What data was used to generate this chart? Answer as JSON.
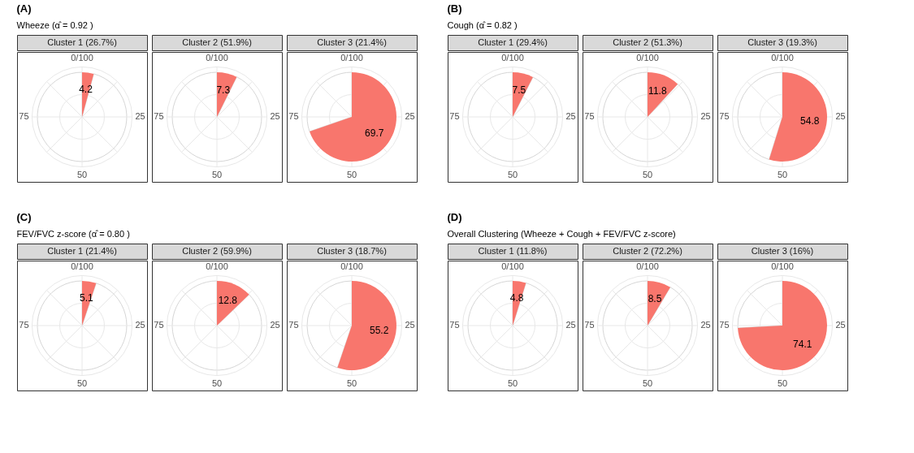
{
  "chart_data": [
    {
      "type": "pie",
      "title": "Cluster 1 (26.7%)",
      "subtitle": "Wheeze (α̂ = 0.92 )",
      "annotations": [
        "(A)",
        "0/100",
        "25",
        "50",
        "75"
      ],
      "categories": [
        null,
        null
      ],
      "values": [
        4.2,
        95.8
      ],
      "colors": [
        "#f8766d",
        "#ffffff"
      ],
      "value_labels": [
        "4.2",
        null
      ],
      "grid": true
    },
    {
      "type": "pie",
      "title": "Cluster 2 (51.9%)",
      "annotations": [
        "0/100",
        "25",
        "50",
        "75"
      ],
      "categories": [
        null,
        null
      ],
      "values": [
        7.3,
        92.7
      ],
      "colors": [
        "#f8766d",
        "#ffffff"
      ],
      "value_labels": [
        "7.3",
        null
      ],
      "grid": true
    },
    {
      "type": "pie",
      "title": "Cluster 3 (21.4%)",
      "annotations": [
        "0/100",
        "25",
        "50",
        "75"
      ],
      "categories": [
        null,
        null
      ],
      "values": [
        69.7,
        30.3
      ],
      "colors": [
        "#f8766d",
        "#ffffff"
      ],
      "value_labels": [
        "69.7",
        null
      ],
      "grid": true
    },
    {
      "type": "pie",
      "title": "Cluster 1 (29.4%)",
      "subtitle": "Cough (α̂ = 0.82 )",
      "annotations": [
        "(B)",
        "0/100",
        "25",
        "50",
        "75"
      ],
      "categories": [
        null,
        null
      ],
      "values": [
        7.5,
        92.5
      ],
      "colors": [
        "#f8766d",
        "#ffffff"
      ],
      "value_labels": [
        "7.5",
        null
      ],
      "grid": true
    },
    {
      "type": "pie",
      "title": "Cluster 2 (51.3%)",
      "annotations": [
        "0/100",
        "25",
        "50",
        "75"
      ],
      "categories": [
        null,
        null
      ],
      "values": [
        11.8,
        88.2
      ],
      "colors": [
        "#f8766d",
        "#ffffff"
      ],
      "value_labels": [
        "11.8",
        null
      ],
      "grid": true
    },
    {
      "type": "pie",
      "title": "Cluster 3 (19.3%)",
      "annotations": [
        "0/100",
        "25",
        "50",
        "75"
      ],
      "categories": [
        null,
        null
      ],
      "values": [
        54.8,
        45.2
      ],
      "colors": [
        "#f8766d",
        "#ffffff"
      ],
      "value_labels": [
        "54.8",
        null
      ],
      "grid": true
    },
    {
      "type": "pie",
      "title": "Cluster 1 (21.4%)",
      "subtitle": "FEV/FVC z-score (α̂ = 0.80 )",
      "annotations": [
        "(C)",
        "0/100",
        "25",
        "50",
        "75"
      ],
      "categories": [
        null,
        null
      ],
      "values": [
        5.1,
        94.9
      ],
      "colors": [
        "#f8766d",
        "#ffffff"
      ],
      "value_labels": [
        "5.1",
        null
      ],
      "grid": true
    },
    {
      "type": "pie",
      "title": "Cluster 2 (59.9%)",
      "annotations": [
        "0/100",
        "25",
        "50",
        "75"
      ],
      "categories": [
        null,
        null
      ],
      "values": [
        12.8,
        87.2
      ],
      "colors": [
        "#f8766d",
        "#ffffff"
      ],
      "value_labels": [
        "12.8",
        null
      ],
      "grid": true
    },
    {
      "type": "pie",
      "title": "Cluster 3 (18.7%)",
      "annotations": [
        "0/100",
        "25",
        "50",
        "75"
      ],
      "categories": [
        null,
        null
      ],
      "values": [
        55.2,
        44.8
      ],
      "colors": [
        "#f8766d",
        "#ffffff"
      ],
      "value_labels": [
        "55.2",
        null
      ],
      "grid": true
    },
    {
      "type": "pie",
      "title": "Cluster 1 (11.8%)",
      "subtitle": "Overall Clustering (Wheeze + Cough + FEV/FVC z-score)",
      "annotations": [
        "(D)",
        "0/100",
        "25",
        "50",
        "75"
      ],
      "categories": [
        null,
        null
      ],
      "values": [
        4.8,
        95.2
      ],
      "colors": [
        "#f8766d",
        "#ffffff"
      ],
      "value_labels": [
        "4.8",
        null
      ],
      "grid": true
    },
    {
      "type": "pie",
      "title": "Cluster 2 (72.2%)",
      "annotations": [
        "0/100",
        "25",
        "50",
        "75"
      ],
      "categories": [
        null,
        null
      ],
      "values": [
        8.5,
        91.5
      ],
      "colors": [
        "#f8766d",
        "#ffffff"
      ],
      "value_labels": [
        "8.5",
        null
      ],
      "grid": true
    },
    {
      "type": "pie",
      "title": "Cluster 3 (16%)",
      "annotations": [
        "0/100",
        "25",
        "50",
        "75"
      ],
      "categories": [
        null,
        null
      ],
      "values": [
        74.1,
        25.9
      ],
      "colors": [
        "#f8766d",
        "#ffffff"
      ],
      "value_labels": [
        "74.1",
        null
      ],
      "grid": true
    }
  ]
}
